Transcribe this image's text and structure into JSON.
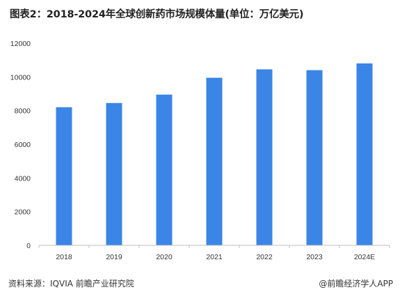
{
  "header": {
    "title": "图表2：2018-2024年全球创新药市场规模体量(单位：万亿美元)"
  },
  "footer": {
    "source": "资料来源：IQVIA 前瞻产业研究院",
    "credit": "@前瞻经济学人APP"
  },
  "colors": {
    "bar": "#3b85e6",
    "axis": "#bfbfbf",
    "text": "#333333"
  },
  "chart_data": {
    "type": "bar",
    "title": "图表2：2018-2024年全球创新药市场规模体量(单位：万亿美元)",
    "categories": [
      "2018",
      "2019",
      "2020",
      "2021",
      "2022",
      "2023",
      "2024E"
    ],
    "values": [
      8200,
      8450,
      8950,
      9950,
      10450,
      10400,
      10800
    ],
    "yticks": [
      "0",
      "2000",
      "4000",
      "6000",
      "8000",
      "10000",
      "12000"
    ],
    "ylim": [
      0,
      12000
    ],
    "xlabel": "",
    "ylabel": "",
    "grid": false,
    "legend": "none"
  }
}
